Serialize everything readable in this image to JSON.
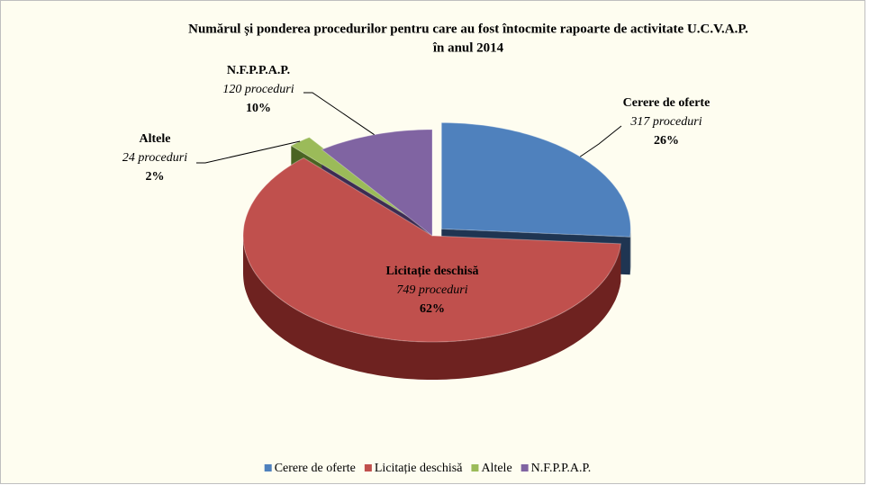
{
  "chart_data": {
    "type": "pie",
    "title": [
      "Numărul și ponderea procedurilor pentru care au fost întocmite rapoarte de activitate U.C.V.A.P.",
      "în anul 2014"
    ],
    "categories": [
      "Cerere de oferte",
      "Licitație deschisă",
      "Altele",
      "N.F.P.P.A.P."
    ],
    "values": [
      317,
      749,
      24,
      120
    ],
    "value_labels": [
      "317 proceduri",
      "749 proceduri",
      "24 proceduri",
      "120 proceduri"
    ],
    "share_labels": [
      "26%",
      "62%",
      "2%",
      "10%"
    ],
    "colors": [
      "#4f81bd",
      "#c0504d",
      "#9bbb59",
      "#8064a2"
    ],
    "side_colors": [
      "#1f3552",
      "#6e2220",
      "#4a6422",
      "#3c2c52"
    ],
    "legend": "bottom"
  }
}
